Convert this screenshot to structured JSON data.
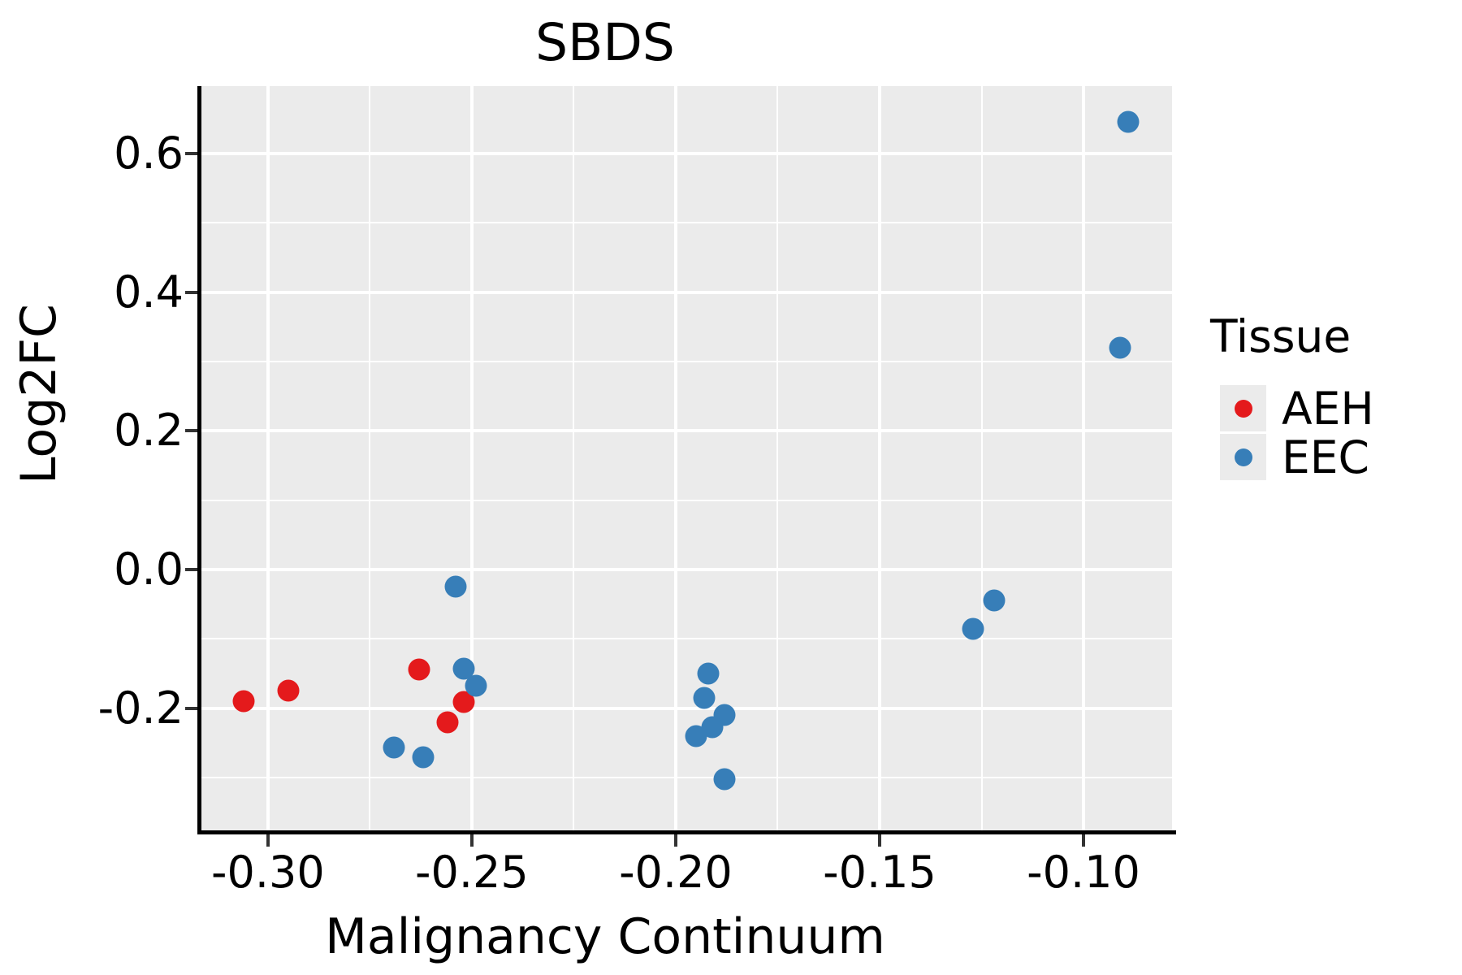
{
  "title": "SBDS",
  "axes": {
    "x_label": "Malignancy Continuum",
    "y_label": "Log2FC"
  },
  "legend": {
    "title": "Tissue",
    "items": [
      {
        "label": "AEH",
        "color": "#e41a1c"
      },
      {
        "label": "EEC",
        "color": "#377eb8"
      }
    ]
  },
  "colors": {
    "aeh_red": "#e41a1c",
    "eec_blue": "#377eb8",
    "panel_background": "#ebebeb",
    "grid": "#ffffff",
    "spine": "#000000",
    "tick": "#333333"
  },
  "chart_data": {
    "type": "scatter",
    "title": "SBDS",
    "xlabel": "Malignancy Continuum",
    "ylabel": "Log2FC",
    "xlim": [
      -0.3165,
      -0.0783
    ],
    "ylim": [
      -0.376,
      0.697
    ],
    "x_major_ticks": [
      -0.3,
      -0.25,
      -0.2,
      -0.15,
      -0.1
    ],
    "x_tick_labels": [
      "-0.30",
      "-0.25",
      "-0.20",
      "-0.15",
      "-0.10"
    ],
    "x_minor_ticks": [
      -0.275,
      -0.225,
      -0.175,
      -0.125
    ],
    "y_major_ticks": [
      0.6,
      0.4,
      0.2,
      0.0,
      -0.2
    ],
    "y_tick_labels": [
      "0.6",
      "0.4",
      "0.2",
      "0.0",
      "-0.2"
    ],
    "y_minor_ticks": [
      0.5,
      0.3,
      0.1,
      -0.1,
      -0.3
    ],
    "grid": true,
    "legend_position": "right",
    "panel_background": "#ebebeb",
    "grid_color": "#ffffff",
    "series": [
      {
        "name": "AEH",
        "color": "#e41a1c",
        "points": [
          [
            -0.306,
            -0.19
          ],
          [
            -0.295,
            -0.174
          ],
          [
            -0.263,
            -0.144
          ],
          [
            -0.252,
            -0.191
          ],
          [
            -0.256,
            -0.22
          ]
        ]
      },
      {
        "name": "EEC",
        "color": "#377eb8",
        "points": [
          [
            -0.254,
            -0.025
          ],
          [
            -0.252,
            -0.143
          ],
          [
            -0.249,
            -0.167
          ],
          [
            -0.269,
            -0.257
          ],
          [
            -0.262,
            -0.27
          ],
          [
            -0.192,
            -0.15
          ],
          [
            -0.193,
            -0.185
          ],
          [
            -0.188,
            -0.21
          ],
          [
            -0.191,
            -0.227
          ],
          [
            -0.195,
            -0.24
          ],
          [
            -0.188,
            -0.302
          ],
          [
            -0.127,
            -0.085
          ],
          [
            -0.122,
            -0.045
          ],
          [
            -0.089,
            0.645
          ],
          [
            -0.091,
            0.32
          ]
        ]
      }
    ]
  }
}
